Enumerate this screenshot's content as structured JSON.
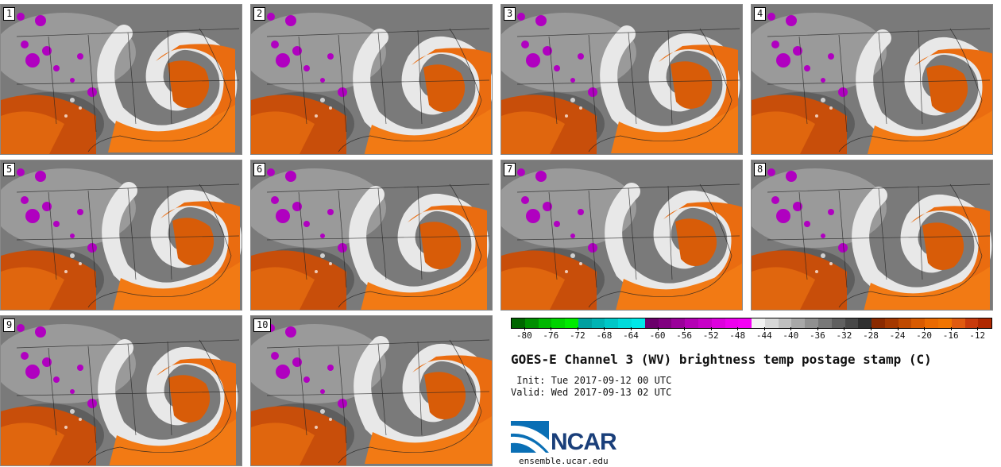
{
  "stamps": [
    {
      "number": "1"
    },
    {
      "number": "2"
    },
    {
      "number": "3"
    },
    {
      "number": "4"
    },
    {
      "number": "5"
    },
    {
      "number": "6"
    },
    {
      "number": "7"
    },
    {
      "number": "8"
    },
    {
      "number": "9"
    },
    {
      "number": "10"
    }
  ],
  "colorbar": {
    "tick_labels": [
      "-80",
      "-76",
      "-72",
      "-68",
      "-64",
      "-60",
      "-56",
      "-52",
      "-48",
      "-44",
      "-40",
      "-36",
      "-32",
      "-28",
      "-24",
      "-20",
      "-16",
      "-12"
    ],
    "colors": [
      "#006600",
      "#008f00",
      "#00b800",
      "#00d400",
      "#00ea00",
      "#00a0a0",
      "#00b4b4",
      "#00c8c8",
      "#00dcdc",
      "#00e8e8",
      "#6a006a",
      "#800080",
      "#9a009a",
      "#b400b4",
      "#c800c8",
      "#dd00dd",
      "#ee00ee",
      "#f400f4",
      "#f2f2f2",
      "#d8d8d8",
      "#c0c0c0",
      "#a8a8a8",
      "#909090",
      "#787878",
      "#606060",
      "#484848",
      "#303030",
      "#8a2a00",
      "#a43800",
      "#c04a00",
      "#d85a00",
      "#ea6a00",
      "#f07400",
      "#e05a10",
      "#c83a0c",
      "#b02800"
    ]
  },
  "title": "GOES-E Channel 3 (WV) brightness temp postage stamp (C)",
  "init": " Init: Tue 2017-09-12 00 UTC",
  "valid": "Valid: Wed 2017-09-13 02 UTC",
  "logo": {
    "text": "NCAR",
    "color": "#1a3f7a",
    "swoosh_color": "#0a6fb5"
  },
  "website": "ensemble.ucar.edu"
}
